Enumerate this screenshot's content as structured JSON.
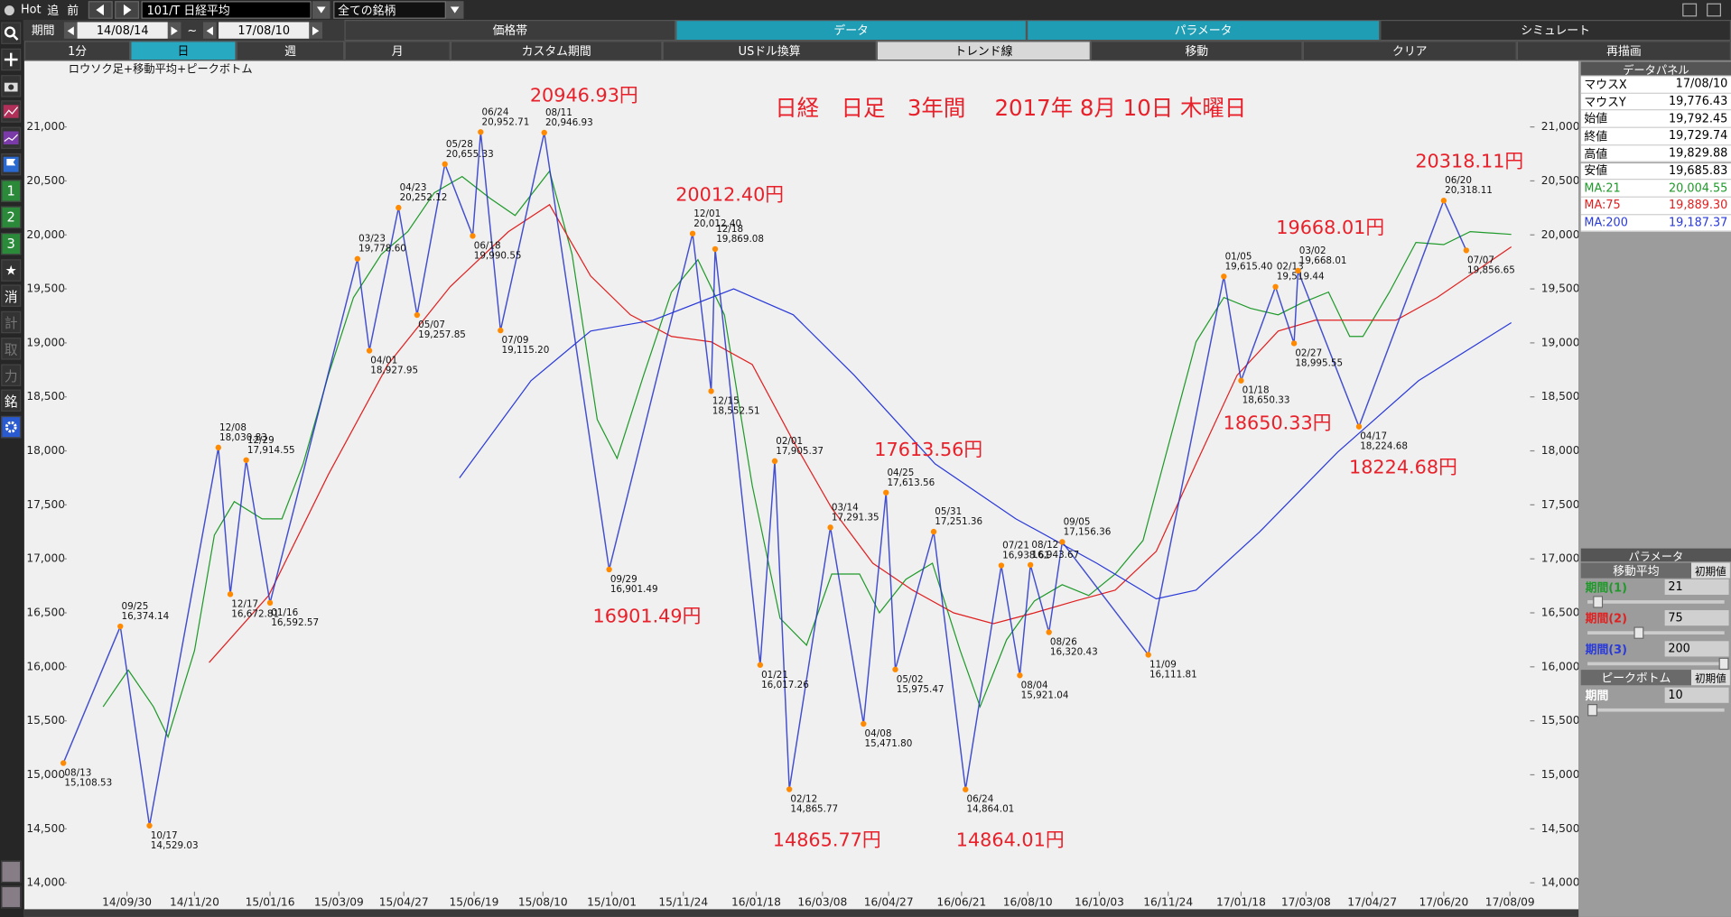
{
  "toolbar": {
    "hot": "Hot",
    "follow": "追",
    "prev": "前",
    "symbol": "101/T 日経平均",
    "universe": "全ての銘柄"
  },
  "period": {
    "label": "期間",
    "from": "14/08/14",
    "sep": "~",
    "to": "17/08/10"
  },
  "tabs": [
    "価格帯",
    "データ",
    "パラメータ",
    "シミュレート"
  ],
  "buttons": [
    "1分",
    "日",
    "週",
    "月",
    "カスタム期間",
    "USドル換算",
    "トレンド線",
    "移動",
    "クリア",
    "再描画"
  ],
  "sidebar": [
    "1",
    "2",
    "3",
    "★",
    "消",
    "計",
    "取",
    "力",
    "銘"
  ],
  "chart_data": {
    "type": "line",
    "title": "日経　日足　3年間　 2017年 8月 10日 木曜日",
    "subtitle": "ロウソク足+移動平均+ピークボトム",
    "xlim": [
      "14/08/13",
      "17/08/10"
    ],
    "ylim": [
      13800,
      21600
    ],
    "xticks": [
      "14/09/30",
      "14/11/20",
      "15/01/16",
      "15/03/09",
      "15/04/27",
      "15/06/19",
      "15/08/10",
      "15/10/01",
      "15/11/24",
      "16/01/18",
      "16/03/08",
      "16/04/27",
      "16/06/21",
      "16/08/10",
      "16/10/03",
      "16/11/24",
      "17/01/18",
      "17/03/08",
      "17/04/27",
      "17/06/20",
      "17/08/09"
    ],
    "yticks": [
      {
        "value": 14000,
        "label": "14,000"
      },
      {
        "value": 14500,
        "label": "14,500"
      },
      {
        "value": 15000,
        "label": "15,000"
      },
      {
        "value": 15500,
        "label": "15,500"
      },
      {
        "value": 16000,
        "label": "16,000"
      },
      {
        "value": 16500,
        "label": "16,500"
      },
      {
        "value": 17000,
        "label": "17,000"
      },
      {
        "value": 17500,
        "label": "17,500"
      },
      {
        "value": 18000,
        "label": "18,000"
      },
      {
        "value": 18500,
        "label": "18,500"
      },
      {
        "value": 19000,
        "label": "19,000"
      },
      {
        "value": 19500,
        "label": "19,500"
      },
      {
        "value": 20000,
        "label": "20,000"
      },
      {
        "value": 20500,
        "label": "20,500"
      },
      {
        "value": 21000,
        "label": "21,000"
      }
    ],
    "series": [
      {
        "color": "#1f9a2a",
        "x": [
          "14/09/12",
          "14/10/01",
          "14/10/20",
          "14/10/31",
          "14/11/20",
          "14/12/05",
          "14/12/20",
          "15/01/10",
          "15/01/25",
          "15/02/10",
          "15/03/01",
          "15/03/20",
          "15/04/10",
          "15/04/30",
          "15/05/20",
          "15/06/10",
          "15/07/01",
          "15/07/20",
          "15/08/15",
          "15/09/01",
          "15/09/20",
          "15/10/05",
          "15/10/25",
          "15/11/15",
          "15/12/05",
          "15/12/25",
          "16/01/15",
          "16/02/05",
          "16/02/25",
          "16/03/15",
          "16/04/05",
          "16/04/20",
          "16/05/10",
          "16/05/30",
          "16/06/20",
          "16/07/05",
          "16/07/25",
          "16/08/15",
          "16/09/05",
          "16/09/25",
          "16/10/15",
          "16/11/05",
          "16/11/25",
          "16/12/15",
          "17/01/05",
          "17/01/25",
          "17/02/15",
          "17/03/05",
          "17/03/25",
          "17/04/10",
          "17/04/20",
          "17/05/10",
          "17/05/30",
          "17/06/20",
          "17/07/10",
          "17/08/10"
        ],
        "values": [
          15630,
          15970,
          15630,
          15350,
          16150,
          17220,
          17530,
          17370,
          17370,
          17880,
          18700,
          19420,
          19820,
          20030,
          20390,
          20540,
          20340,
          20180,
          20590,
          19820,
          18290,
          17930,
          18700,
          19470,
          19770,
          19260,
          17680,
          16450,
          16200,
          16860,
          16860,
          16500,
          16810,
          16960,
          16150,
          15630,
          16250,
          16610,
          16760,
          16660,
          16860,
          17170,
          18090,
          19010,
          19420,
          19320,
          19260,
          19370,
          19470,
          19060,
          19060,
          19470,
          19930,
          19910,
          20030,
          20004.55
        ]
      },
      {
        "color": "#e02020",
        "x": [
          "14/12/01",
          "15/01/15",
          "15/03/01",
          "15/04/15",
          "15/06/01",
          "15/07/15",
          "15/08/15",
          "15/09/15",
          "15/10/15",
          "15/11/15",
          "15/12/15",
          "16/01/15",
          "16/02/15",
          "16/03/15",
          "16/04/15",
          "16/05/15",
          "16/06/15",
          "16/07/15",
          "16/08/15",
          "16/09/15",
          "16/10/15",
          "16/11/15",
          "16/12/15",
          "17/01/15",
          "17/02/15",
          "17/03/15",
          "17/04/15",
          "17/05/15",
          "17/06/15",
          "17/08/10"
        ],
        "values": [
          16040,
          16660,
          17780,
          18800,
          19520,
          20030,
          20280,
          19620,
          19260,
          19060,
          19010,
          18800,
          18090,
          17470,
          16960,
          16710,
          16500,
          16400,
          16500,
          16610,
          16710,
          17070,
          17880,
          18700,
          19110,
          19210,
          19210,
          19210,
          19420,
          19889.3
        ]
      },
      {
        "color": "#2a3ad8",
        "x": [
          "15/06/08",
          "15/08/01",
          "15/09/15",
          "15/11/01",
          "16/01/01",
          "16/02/15",
          "16/04/01",
          "16/06/01",
          "16/08/01",
          "16/10/01",
          "16/11/15",
          "16/12/15",
          "17/02/01",
          "17/04/01",
          "17/06/01",
          "17/08/10"
        ],
        "values": [
          17750,
          18650,
          19110,
          19210,
          19500,
          19260,
          18700,
          17880,
          17370,
          16960,
          16630,
          16710,
          17250,
          17990,
          18650,
          19187.37
        ]
      }
    ],
    "points": {
      "color": "#ff8a00",
      "line_color": "#2433c8",
      "x": [
        "14/08/13",
        "14/09/25",
        "14/10/17",
        "14/12/08",
        "14/12/17",
        "14/12/29",
        "15/01/16",
        "15/03/23",
        "15/04/01",
        "15/04/23",
        "15/05/07",
        "15/05/28",
        "15/06/18",
        "15/06/24",
        "15/07/09",
        "15/08/11",
        "15/09/29",
        "15/12/01",
        "15/12/15",
        "15/12/18",
        "16/01/21",
        "16/02/01",
        "16/02/12",
        "16/03/14",
        "16/04/08",
        "16/04/25",
        "16/05/02",
        "16/05/31",
        "16/06/24",
        "16/07/21",
        "16/08/04",
        "16/08/12",
        "16/08/26",
        "16/09/05",
        "16/11/09",
        "17/01/05",
        "17/01/18",
        "17/02/13",
        "17/02/27",
        "17/03/02",
        "17/04/17",
        "17/06/20",
        "17/07/07"
      ],
      "date_labels": [
        "08/13",
        "09/25",
        "10/17",
        "12/08",
        "12/17",
        "12/29",
        "01/16",
        "03/23",
        "04/01",
        "04/23",
        "05/07",
        "05/28",
        "06/18",
        "06/24",
        "07/09",
        "08/11",
        "09/29",
        "12/01",
        "12/15",
        "12/18",
        "01/21",
        "02/01",
        "02/12",
        "03/14",
        "04/08",
        "04/25",
        "05/02",
        "05/31",
        "06/24",
        "07/21",
        "08/04",
        "08/12",
        "08/26",
        "09/05",
        "11/09",
        "01/05",
        "01/18",
        "02/13",
        "02/27",
        "03/02",
        "04/17",
        "06/20",
        "07/07"
      ],
      "values": [
        15108.53,
        16374.14,
        14529.03,
        18030.83,
        16672.81,
        17914.55,
        16592.57,
        19778.6,
        18927.95,
        20252.12,
        19257.85,
        20655.33,
        19990.55,
        20952.71,
        19115.2,
        20946.93,
        16901.49,
        20012.4,
        18552.51,
        19869.08,
        16017.26,
        17905.37,
        14865.77,
        17291.35,
        15471.8,
        17613.56,
        15975.47,
        17251.36,
        14864.01,
        16938.61,
        15921.04,
        16943.67,
        16320.43,
        17156.36,
        16111.81,
        19615.4,
        18650.33,
        19519.44,
        18995.55,
        19668.01,
        18224.68,
        20318.11,
        19856.65
      ],
      "value_labels": [
        "15,108.53",
        "16,374.14",
        "14,529.03",
        "18,030.83",
        "16,672.81",
        "17,914.55",
        "16,592.57",
        "19,778.60",
        "18,927.95",
        "20,252.12",
        "19,257.85",
        "20,655.33",
        "19,990.55",
        "20,952.71",
        "19,115.20",
        "20,946.93",
        "16,901.49",
        "20,012.40",
        "18,552.51",
        "19,869.08",
        "16,017.26",
        "17,905.37",
        "14,865.77",
        "17,291.35",
        "15,471.80",
        "17,613.56",
        "15,975.47",
        "17,251.36",
        "14,864.01",
        "16,938.61",
        "15,921.04",
        "16,943.67",
        "16,320.43",
        "17,156.36",
        "16,111.81",
        "19,615.40",
        "18,650.33",
        "19,519.44",
        "18,995.55",
        "19,668.01",
        "18,224.68",
        "20,318.11",
        "19,856.65"
      ]
    },
    "annotations": [
      "20946.93円",
      "20012.40円",
      "16901.49円",
      "17613.56円",
      "14865.77円",
      "14864.01円",
      "20318.11円",
      "19668.01円",
      "18650.33円",
      "18224.68円"
    ]
  },
  "data_panel": {
    "title": "データパネル",
    "rows": [
      [
        "マウスX",
        "17/08/10"
      ],
      [
        "マウスY",
        "19,776.43"
      ],
      [
        "始値",
        "19,792.45"
      ],
      [
        "終値",
        "19,729.74"
      ],
      [
        "高値",
        "19,829.88"
      ],
      [
        "安値",
        "19,685.83"
      ],
      [
        "MA:21",
        "20,004.55"
      ],
      [
        "MA:75",
        "19,889.30"
      ],
      [
        "MA:200",
        "19,187.37"
      ]
    ]
  },
  "param_panel": {
    "title": "パラメータ",
    "ma_title": "移動平均",
    "reset": "初期値",
    "ma_rows": [
      [
        "期間(1)",
        "21"
      ],
      [
        "期間(2)",
        "75"
      ],
      [
        "期間(3)",
        "200"
      ]
    ],
    "pb_title": "ピークボトム",
    "pb_reset": "初期値",
    "pb_rows": [
      [
        "期間",
        "10"
      ]
    ]
  }
}
